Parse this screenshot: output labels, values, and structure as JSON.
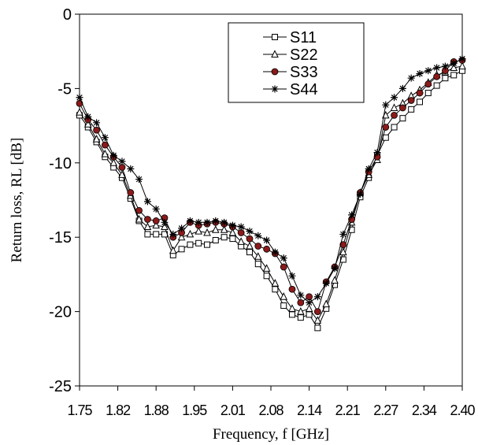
{
  "chart_data": {
    "type": "line",
    "title": "",
    "xlabel": "Frequency, f [GHz]",
    "ylabel": "Return loss, RL [dB]",
    "xlim": [
      1.75,
      2.4
    ],
    "ylim": [
      -25,
      0
    ],
    "x_tick_labels": [
      "1.75",
      "1.82",
      "1.88",
      "1.95",
      "2.01",
      "2.08",
      "2.14",
      "2.21",
      "2.27",
      "2.34",
      "2.40"
    ],
    "y_tick_labels": [
      "0",
      "-5",
      "-10",
      "-15",
      "-20",
      "-25"
    ],
    "y_ticks": [
      0,
      -5,
      -10,
      -15,
      -20,
      -25
    ],
    "grid": false,
    "legend_position": "top-center",
    "x": [
      1.75,
      1.7644,
      1.7789,
      1.7933,
      1.8078,
      1.8222,
      1.8367,
      1.8511,
      1.8656,
      1.88,
      1.8944,
      1.9089,
      1.9233,
      1.9378,
      1.9522,
      1.9667,
      1.9811,
      1.9956,
      2.01,
      2.0244,
      2.0389,
      2.0533,
      2.0678,
      2.0822,
      2.0967,
      2.1111,
      2.1256,
      2.14,
      2.1544,
      2.1689,
      2.1833,
      2.1978,
      2.2122,
      2.2267,
      2.2411,
      2.2556,
      2.27,
      2.2844,
      2.2989,
      2.3133,
      2.3278,
      2.3422,
      2.3567,
      2.3711,
      2.3856,
      2.4
    ],
    "series": [
      {
        "name": "S11",
        "marker": "square",
        "color": "#000000",
        "values": [
          -6.8,
          -7.6,
          -8.6,
          -9.6,
          -10.3,
          -11.0,
          -12.4,
          -13.9,
          -14.8,
          -14.8,
          -14.8,
          -16.2,
          -15.8,
          -15.5,
          -15.4,
          -15.5,
          -15.2,
          -15.0,
          -15.1,
          -15.6,
          -16.0,
          -16.8,
          -17.6,
          -18.5,
          -19.6,
          -20.2,
          -20.4,
          -20.2,
          -21.1,
          -19.8,
          -18.2,
          -16.5,
          -14.5,
          -12.3,
          -11.0,
          -9.5,
          -8.3,
          -7.6,
          -7.0,
          -6.4,
          -5.9,
          -5.3,
          -4.8,
          -4.3,
          -4.1,
          -3.8
        ]
      },
      {
        "name": "S22",
        "marker": "triangle",
        "color": "#000000",
        "values": [
          -6.6,
          -7.4,
          -8.4,
          -9.4,
          -10.0,
          -10.8,
          -12.2,
          -13.8,
          -14.3,
          -14.2,
          -14.3,
          -15.9,
          -15.0,
          -14.8,
          -14.6,
          -14.7,
          -14.5,
          -14.5,
          -14.7,
          -15.3,
          -15.6,
          -16.3,
          -17.1,
          -18.1,
          -19.0,
          -19.8,
          -20.0,
          -19.8,
          -20.6,
          -19.5,
          -17.9,
          -16.0,
          -14.0,
          -12.0,
          -10.8,
          -9.8,
          -6.8,
          -6.3,
          -6.0,
          -5.5,
          -5.1,
          -4.6,
          -4.1,
          -3.9,
          -3.6,
          -3.5
        ]
      },
      {
        "name": "S33",
        "marker": "circle",
        "color": "#8b1a1a",
        "values": [
          -6.0,
          -7.1,
          -7.8,
          -8.8,
          -9.6,
          -10.3,
          -12.0,
          -13.2,
          -13.8,
          -13.9,
          -13.7,
          -15.0,
          -14.7,
          -14.0,
          -14.2,
          -14.1,
          -14.0,
          -14.1,
          -14.3,
          -14.7,
          -15.1,
          -15.6,
          -15.8,
          -16.1,
          -17.0,
          -18.5,
          -19.4,
          -19.0,
          -20.0,
          -18.0,
          -17.0,
          -15.5,
          -13.8,
          -12.0,
          -10.6,
          -9.6,
          -7.6,
          -6.8,
          -6.3,
          -5.8,
          -5.3,
          -4.7,
          -4.2,
          -3.8,
          -3.2,
          -3.1
        ]
      },
      {
        "name": "S44",
        "marker": "asterisk",
        "color": "#000000",
        "values": [
          -5.6,
          -6.9,
          -7.3,
          -8.3,
          -9.5,
          -9.9,
          -10.4,
          -11.1,
          -12.6,
          -13.1,
          -14.0,
          -14.8,
          -14.4,
          -13.9,
          -14.0,
          -14.0,
          -13.9,
          -14.0,
          -14.2,
          -14.3,
          -14.6,
          -14.9,
          -15.2,
          -16.0,
          -16.4,
          -17.6,
          -18.9,
          -19.4,
          -19.0,
          -18.1,
          -17.1,
          -14.8,
          -13.5,
          -12.1,
          -10.4,
          -9.3,
          -6.1,
          -5.6,
          -5.0,
          -4.3,
          -4.0,
          -3.8,
          -3.6,
          -3.5,
          -3.3,
          -3.0
        ]
      }
    ]
  }
}
